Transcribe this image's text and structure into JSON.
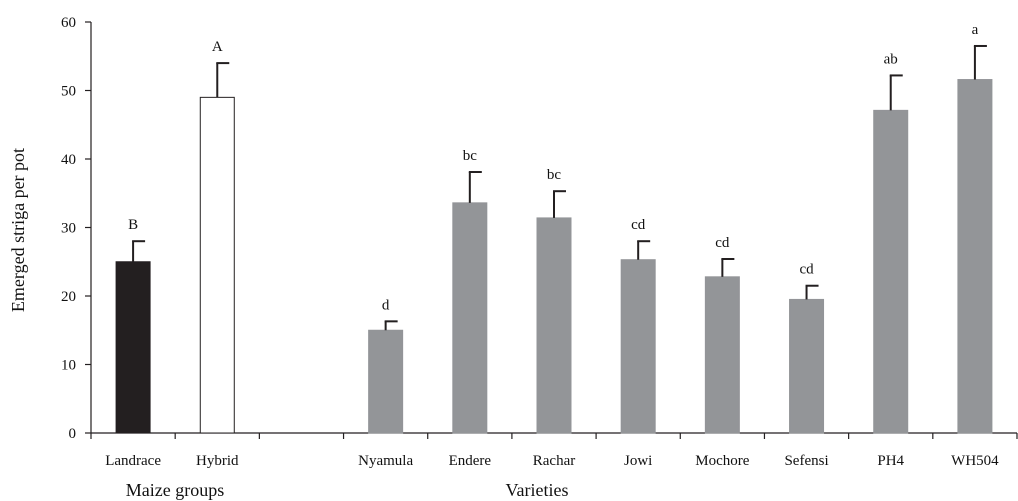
{
  "chart_data": {
    "type": "bar",
    "ylabel": "Emerged striga per pot",
    "ylim": [
      0,
      60
    ],
    "yticks": [
      0,
      10,
      20,
      30,
      40,
      50,
      60
    ],
    "grid": false,
    "groups": [
      {
        "label": "Maize groups"
      },
      {
        "label": "Varieties"
      }
    ],
    "categories": [
      "Landrace",
      "Hybrid",
      "",
      "Nyamula",
      "Endere",
      "Rachar",
      "Jowi",
      "Mochore",
      "Sefensi",
      "PH4",
      "WH504"
    ],
    "bars": [
      {
        "category": "Landrace",
        "value": 25.0,
        "error": 3.0,
        "sig": "B",
        "color": "#231f20",
        "stroke": "#231f20",
        "group": 0
      },
      {
        "category": "Hybrid",
        "value": 49.0,
        "error": 5.0,
        "sig": "A",
        "color": "#ffffff",
        "stroke": "#231f20",
        "group": 0
      },
      {
        "category": "Nyamula",
        "value": 15.0,
        "error": 1.3,
        "sig": "d",
        "color": "#939598",
        "stroke": "#939598",
        "group": 1
      },
      {
        "category": "Endere",
        "value": 33.6,
        "error": 4.5,
        "sig": "bc",
        "color": "#939598",
        "stroke": "#939598",
        "group": 1
      },
      {
        "category": "Rachar",
        "value": 31.4,
        "error": 3.9,
        "sig": "bc",
        "color": "#939598",
        "stroke": "#939598",
        "group": 1
      },
      {
        "category": "Jowi",
        "value": 25.3,
        "error": 2.7,
        "sig": "cd",
        "color": "#939598",
        "stroke": "#939598",
        "group": 1
      },
      {
        "category": "Mochore",
        "value": 22.8,
        "error": 2.6,
        "sig": "cd",
        "color": "#939598",
        "stroke": "#939598",
        "group": 1
      },
      {
        "category": "Sefensi",
        "value": 19.5,
        "error": 2.0,
        "sig": "cd",
        "color": "#939598",
        "stroke": "#939598",
        "group": 1
      },
      {
        "category": "PH4",
        "value": 47.1,
        "error": 5.1,
        "sig": "ab",
        "color": "#939598",
        "stroke": "#939598",
        "group": 1
      },
      {
        "category": "WH504",
        "value": 51.6,
        "error": 4.9,
        "sig": "a",
        "color": "#939598",
        "stroke": "#939598",
        "group": 1
      }
    ]
  }
}
